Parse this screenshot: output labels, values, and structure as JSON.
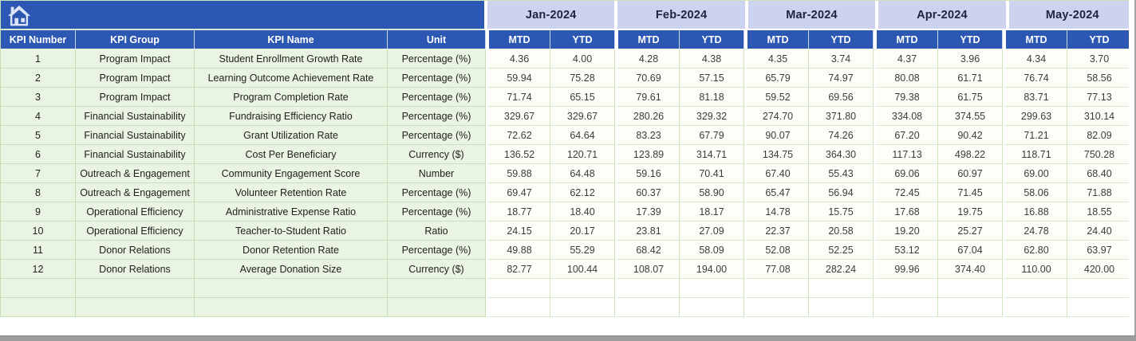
{
  "icons": {
    "home": "home-icon"
  },
  "colors": {
    "banner_blue": "#2c58b3",
    "header_row_blue": "#2c58b3",
    "month_header_bg": "#cdd3ee",
    "month_header_text": "#1b2440",
    "left_column_green": "#e9f4e2",
    "gridline_green": "#c6dfb4",
    "value_cell_bg": "#fdfef8",
    "scrollbar_gray": "#9d9d9d"
  },
  "months": [
    "Jan-2024",
    "Feb-2024",
    "Mar-2024",
    "Apr-2024",
    "May-2024"
  ],
  "sub_columns": [
    "MTD",
    "YTD"
  ],
  "left_headers": [
    "KPI Number",
    "KPI Group",
    "KPI Name",
    "Unit"
  ],
  "empty_row_count": 2,
  "rows": [
    {
      "number": "1",
      "group": "Program Impact",
      "name": "Student Enrollment Growth Rate",
      "unit": "Percentage (%)",
      "values": [
        "4.36",
        "4.00",
        "4.28",
        "4.38",
        "4.35",
        "3.74",
        "4.37",
        "3.96",
        "4.34",
        "3.70"
      ]
    },
    {
      "number": "2",
      "group": "Program Impact",
      "name": "Learning Outcome Achievement Rate",
      "unit": "Percentage (%)",
      "values": [
        "59.94",
        "75.28",
        "70.69",
        "57.15",
        "65.79",
        "74.97",
        "80.08",
        "61.71",
        "76.74",
        "58.56"
      ]
    },
    {
      "number": "3",
      "group": "Program Impact",
      "name": "Program Completion Rate",
      "unit": "Percentage (%)",
      "values": [
        "71.74",
        "65.15",
        "79.61",
        "81.18",
        "59.52",
        "69.56",
        "79.38",
        "61.75",
        "83.71",
        "77.13"
      ]
    },
    {
      "number": "4",
      "group": "Financial Sustainability",
      "name": "Fundraising Efficiency Ratio",
      "unit": "Percentage (%)",
      "values": [
        "329.67",
        "329.67",
        "280.26",
        "329.32",
        "274.70",
        "371.80",
        "334.08",
        "374.55",
        "299.63",
        "310.14"
      ]
    },
    {
      "number": "5",
      "group": "Financial Sustainability",
      "name": "Grant Utilization Rate",
      "unit": "Percentage (%)",
      "values": [
        "72.62",
        "64.64",
        "83.23",
        "67.79",
        "90.07",
        "74.26",
        "67.20",
        "90.42",
        "71.21",
        "82.09"
      ]
    },
    {
      "number": "6",
      "group": "Financial Sustainability",
      "name": "Cost Per Beneficiary",
      "unit": "Currency ($)",
      "values": [
        "136.52",
        "120.71",
        "123.89",
        "314.71",
        "134.75",
        "364.30",
        "117.13",
        "498.22",
        "118.71",
        "750.28"
      ]
    },
    {
      "number": "7",
      "group": "Outreach & Engagement",
      "name": "Community Engagement Score",
      "unit": "Number",
      "values": [
        "59.88",
        "64.48",
        "59.16",
        "70.41",
        "67.40",
        "55.43",
        "69.06",
        "60.97",
        "69.00",
        "68.40"
      ]
    },
    {
      "number": "8",
      "group": "Outreach & Engagement",
      "name": "Volunteer Retention Rate",
      "unit": "Percentage (%)",
      "values": [
        "69.47",
        "62.12",
        "60.37",
        "58.90",
        "65.47",
        "56.94",
        "72.45",
        "71.45",
        "58.06",
        "71.88"
      ]
    },
    {
      "number": "9",
      "group": "Operational Efficiency",
      "name": "Administrative Expense Ratio",
      "unit": "Percentage (%)",
      "values": [
        "18.77",
        "18.40",
        "17.39",
        "18.17",
        "14.78",
        "15.75",
        "17.68",
        "19.75",
        "16.88",
        "18.55"
      ]
    },
    {
      "number": "10",
      "group": "Operational Efficiency",
      "name": "Teacher-to-Student Ratio",
      "unit": "Ratio",
      "values": [
        "24.15",
        "20.17",
        "23.81",
        "27.09",
        "22.37",
        "20.58",
        "19.20",
        "25.27",
        "24.78",
        "24.40"
      ]
    },
    {
      "number": "11",
      "group": "Donor Relations",
      "name": "Donor Retention Rate",
      "unit": "Percentage (%)",
      "values": [
        "49.88",
        "55.29",
        "68.42",
        "58.09",
        "52.08",
        "52.25",
        "53.12",
        "67.04",
        "62.80",
        "63.97"
      ]
    },
    {
      "number": "12",
      "group": "Donor Relations",
      "name": "Average Donation Size",
      "unit": "Currency ($)",
      "values": [
        "82.77",
        "100.44",
        "108.07",
        "194.00",
        "77.08",
        "282.24",
        "99.96",
        "374.40",
        "110.00",
        "420.00"
      ]
    }
  ]
}
